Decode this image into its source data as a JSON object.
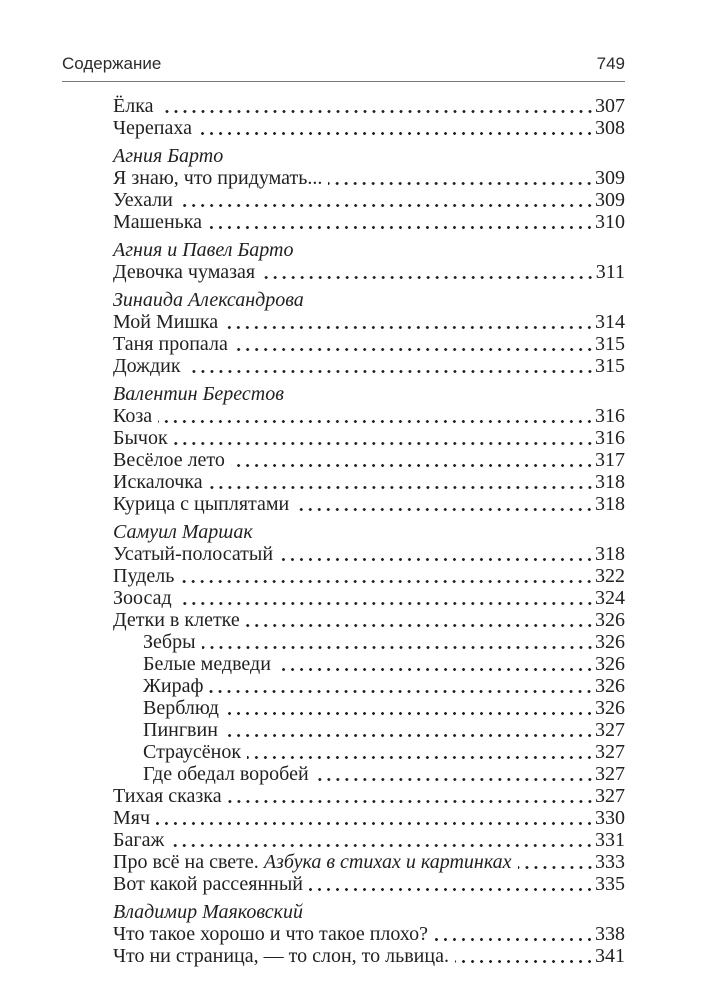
{
  "header": {
    "running_title": "Содержание",
    "page_number": "749"
  },
  "colors": {
    "text": "#212121",
    "rule": "#7a7a7a"
  },
  "toc": {
    "rows": [
      {
        "type": "entry",
        "indent": 0,
        "title": "Ёлка",
        "page": "307"
      },
      {
        "type": "entry",
        "indent": 0,
        "title": "Черепаха",
        "page": "308"
      },
      {
        "type": "author",
        "title": "Агния Барто"
      },
      {
        "type": "entry",
        "indent": 0,
        "title": "Я знаю, что придумать...",
        "page": "309"
      },
      {
        "type": "entry",
        "indent": 0,
        "title": "Уехали",
        "page": "309"
      },
      {
        "type": "entry",
        "indent": 0,
        "title": "Машенька",
        "page": "310"
      },
      {
        "type": "author",
        "title": "Агния и Павел Барто"
      },
      {
        "type": "entry",
        "indent": 0,
        "title": "Девочка чумазая",
        "page": "311"
      },
      {
        "type": "author",
        "title": "Зинаида Александрова"
      },
      {
        "type": "entry",
        "indent": 0,
        "title": "Мой Мишка",
        "page": "314"
      },
      {
        "type": "entry",
        "indent": 0,
        "title": "Таня пропала",
        "page": "315"
      },
      {
        "type": "entry",
        "indent": 0,
        "title": "Дождик",
        "page": "315"
      },
      {
        "type": "author",
        "title": "Валентин Берестов"
      },
      {
        "type": "entry",
        "indent": 0,
        "title": "Коза",
        "page": "316"
      },
      {
        "type": "entry",
        "indent": 0,
        "title": "Бычок",
        "page": "316"
      },
      {
        "type": "entry",
        "indent": 0,
        "title": "Весёлое лето",
        "page": "317"
      },
      {
        "type": "entry",
        "indent": 0,
        "title": "Искалочка",
        "page": "318"
      },
      {
        "type": "entry",
        "indent": 0,
        "title": "Курица с цыплятами",
        "page": "318"
      },
      {
        "type": "author",
        "title": "Самуил Маршак"
      },
      {
        "type": "entry",
        "indent": 0,
        "title": "Усатый-полосатый",
        "page": "318"
      },
      {
        "type": "entry",
        "indent": 0,
        "title": "Пудель",
        "page": "322"
      },
      {
        "type": "entry",
        "indent": 0,
        "title": "Зоосад",
        "page": "324"
      },
      {
        "type": "entry",
        "indent": 0,
        "title": "Детки в клетке",
        "page": "326"
      },
      {
        "type": "entry",
        "indent": 1,
        "title": "Зебры",
        "page": "326"
      },
      {
        "type": "entry",
        "indent": 1,
        "title": "Белые медведи",
        "page": "326"
      },
      {
        "type": "entry",
        "indent": 1,
        "title": "Жираф",
        "page": "326"
      },
      {
        "type": "entry",
        "indent": 1,
        "title": "Верблюд",
        "page": "326"
      },
      {
        "type": "entry",
        "indent": 1,
        "title": "Пингвин",
        "page": "327"
      },
      {
        "type": "entry",
        "indent": 1,
        "title": "Страусёнок",
        "page": "327"
      },
      {
        "type": "entry",
        "indent": 1,
        "title": "Где обедал воробей",
        "page": "327"
      },
      {
        "type": "entry",
        "indent": 0,
        "title": "Тихая сказка",
        "page": "327"
      },
      {
        "type": "entry",
        "indent": 0,
        "title": "Мяч",
        "page": "330"
      },
      {
        "type": "entry",
        "indent": 0,
        "title": "Багаж",
        "page": "331"
      },
      {
        "type": "entry",
        "indent": 0,
        "title": "Про всё на свете. ",
        "title_italic": "Азбука в стихах и картинках",
        "page": "333"
      },
      {
        "type": "entry",
        "indent": 0,
        "title": "Вот какой рассеянный",
        "page": "335"
      },
      {
        "type": "author",
        "title": "Владимир Маяковский"
      },
      {
        "type": "entry",
        "indent": 0,
        "title": "Что такое хорошо и что такое плохо?",
        "page": "338"
      },
      {
        "type": "entry",
        "indent": 0,
        "title": "Что ни страница, — то слон, то львица.",
        "page": "341"
      }
    ]
  }
}
